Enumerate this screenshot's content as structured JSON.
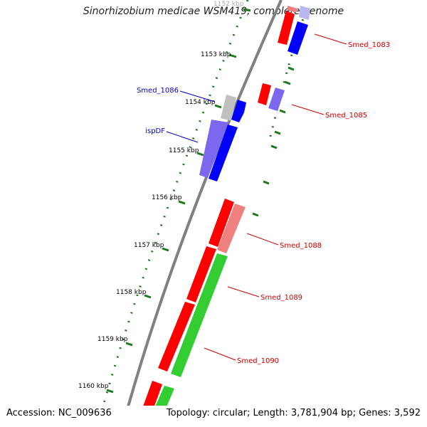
{
  "title": "Sinorhizobium medicae WSM419, complete genome",
  "footer": {
    "accession": "Accession: NC_009636",
    "stats": "Topology: circular; Length: 3,781,904 bp; Genes: 3,592"
  },
  "colors": {
    "backbone": "#808080",
    "tick_dots": "#1a7a1a",
    "red": "#ff0000",
    "blue": "#0000ff",
    "green": "#33cc33",
    "light_red": "#f08080",
    "light_blue": "#b8b8f0",
    "slate_blue": "#7b68ee",
    "grey": "#c0c0c0",
    "label_red": "#cc0000",
    "label_blue": "#0000cc"
  },
  "ruler": {
    "ticks": [
      "1152 kbp",
      "1153 kbp",
      "1154 kbp",
      "1155 kbp",
      "1156 kbp",
      "1157 kbp",
      "1158 kbp",
      "1159 kbp",
      "1160 kbp"
    ]
  },
  "genes": [
    {
      "label": "Smed_1083",
      "side": "right",
      "color": "label_red"
    },
    {
      "label": "Smed_1085",
      "side": "right",
      "color": "label_red"
    },
    {
      "label": "Smed_1086",
      "side": "left",
      "color": "label_blue"
    },
    {
      "label": "ispDF",
      "side": "left",
      "color": "label_blue"
    },
    {
      "label": "Smed_1088",
      "side": "right",
      "color": "label_red"
    },
    {
      "label": "Smed_1089",
      "side": "right",
      "color": "label_red"
    },
    {
      "label": "Smed_1090",
      "side": "right",
      "color": "label_red"
    }
  ]
}
